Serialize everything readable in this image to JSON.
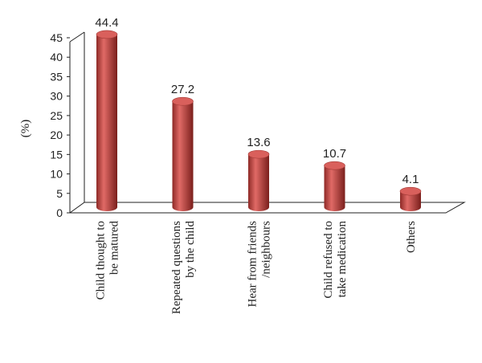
{
  "chart_data": {
    "type": "bar",
    "y_label": "(%)",
    "categories": [
      [
        "Child thought to",
        "be matured"
      ],
      [
        "Repeated questions",
        "by the child"
      ],
      [
        "Hear from friends",
        "/neighbours"
      ],
      [
        "Child refused to",
        "take medication"
      ],
      [
        "Others"
      ]
    ],
    "values": [
      44.4,
      27.2,
      13.6,
      10.7,
      4.1
    ],
    "color": "#c0504d",
    "ylim": [
      0,
      45
    ],
    "yticks": [
      0,
      5,
      10,
      15,
      20,
      25,
      30,
      35,
      40,
      45
    ]
  }
}
